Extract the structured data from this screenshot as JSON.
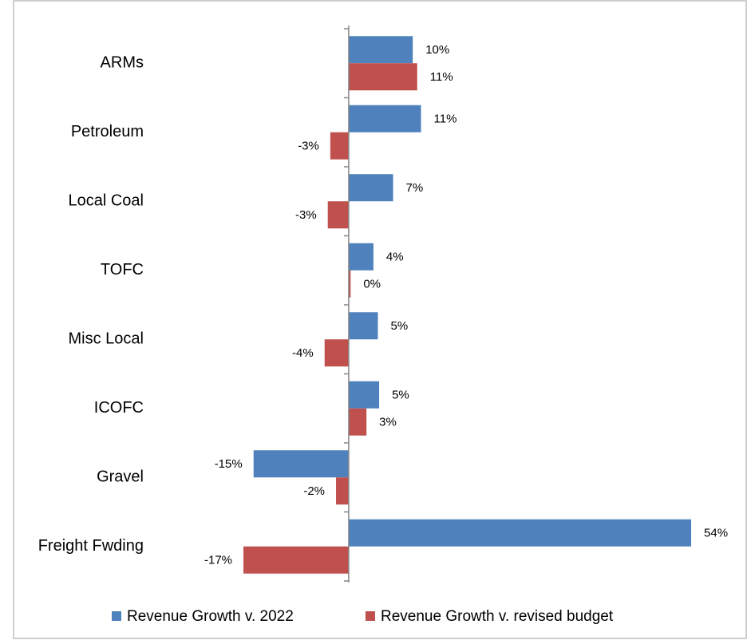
{
  "chart_data": {
    "type": "hbar",
    "categories": [
      "ARMs",
      "Petroleum",
      "Local Coal",
      "TOFC",
      "Misc Local",
      "ICOFC",
      "Gravel",
      "Freight Fwding"
    ],
    "series": [
      {
        "name": "Revenue Growth v. 2022",
        "color": "#4f81bd",
        "values": [
          10.1,
          11.4,
          7.0,
          3.9,
          4.6,
          4.8,
          -15.0,
          54.0
        ],
        "value_labels": [
          "10%",
          "11%",
          "7%",
          "4%",
          "5%",
          "5%",
          "-15%",
          "54%"
        ]
      },
      {
        "name": "Revenue Growth v. revised budget",
        "color": "#c0504d",
        "values": [
          10.8,
          -2.9,
          -3.3,
          0.3,
          -3.8,
          2.8,
          -2.0,
          -16.6
        ],
        "value_labels": [
          "11%",
          "-3%",
          "-3%",
          "0%",
          "-4%",
          "3%",
          "-2%",
          "-17%"
        ]
      }
    ],
    "xlim": [
      -20,
      55
    ],
    "legend": "bottom"
  }
}
